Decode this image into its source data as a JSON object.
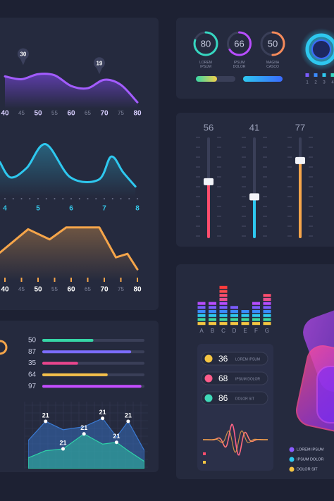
{
  "chart_data": [
    {
      "type": "line",
      "color": "#a35cff",
      "x": [
        40,
        45,
        50,
        55,
        60,
        65,
        70,
        75,
        80
      ],
      "values": [
        52,
        47,
        56,
        54,
        35,
        31,
        46,
        37,
        6
      ],
      "xlim": [
        40,
        80
      ],
      "ylim": [
        0,
        100
      ],
      "xticks": [
        40,
        45,
        50,
        55,
        60,
        65,
        70,
        75,
        80
      ],
      "annotations": [
        {
          "text": "30",
          "x": 45.5,
          "y": 72
        },
        {
          "text": "19",
          "x": 68.5,
          "y": 56
        }
      ]
    },
    {
      "type": "line",
      "color": "#2ec8ef",
      "x": [
        3.85,
        4.17,
        4.66,
        5.23,
        5.98,
        6.83,
        7.21,
        7.57,
        7.94
      ],
      "values": [
        56,
        29,
        46,
        88,
        29,
        25,
        66,
        38,
        13
      ],
      "xlim": [
        4,
        8
      ],
      "ylim": [
        0,
        100
      ],
      "xticks": [
        4,
        5,
        6,
        7,
        8
      ]
    },
    {
      "type": "line",
      "color": "#f5a54a",
      "x": [
        38.5,
        47,
        53.5,
        58.5,
        68.5,
        73.5,
        77,
        80
      ],
      "values": [
        43,
        82,
        65,
        85,
        85,
        35,
        41,
        15
      ],
      "xlim": [
        40,
        80
      ],
      "ylim": [
        0,
        100
      ],
      "xticks": [
        40,
        45,
        50,
        55,
        60,
        65,
        70,
        75,
        80
      ]
    },
    {
      "type": "hbar",
      "values": [
        50,
        87,
        35,
        64,
        97
      ],
      "colors": [
        "#36d6a6",
        "#7b6cff",
        "#e8458c",
        "#f5c04a",
        "#c44dff"
      ],
      "xlim": [
        0,
        100
      ]
    },
    {
      "type": "area",
      "x": [
        0,
        1.5,
        3,
        4.8,
        6.4,
        7.6,
        8.6,
        10
      ],
      "xlim": [
        0,
        10
      ],
      "ylim": [
        0,
        100
      ],
      "series": [
        {
          "color": "#3a7bd5",
          "values": [
            41,
            73,
            59,
            64,
            78,
            47,
            73,
            24
          ]
        },
        {
          "color": "#2fd3a8",
          "values": [
            12,
            24,
            27,
            52,
            35,
            38,
            24,
            6
          ]
        }
      ],
      "annotations": [
        {
          "text": "21",
          "x": 1.5,
          "y": 73
        },
        {
          "text": "21",
          "x": 6.4,
          "y": 78
        },
        {
          "text": "21",
          "x": 8.6,
          "y": 73
        },
        {
          "text": "21",
          "x": 4.8,
          "y": 52
        },
        {
          "text": "21",
          "x": 3,
          "y": 27
        },
        {
          "text": "21",
          "x": 7.6,
          "y": 38
        }
      ]
    },
    {
      "type": "equalizer",
      "categories": [
        "A",
        "B",
        "C",
        "D",
        "E",
        "F",
        "G"
      ],
      "values": [
        6,
        6,
        10,
        5,
        4,
        6,
        8
      ],
      "ylim": [
        0,
        10
      ],
      "segment_colors": [
        "#f5c542",
        "#3fd9a0",
        "#2ec8ef",
        "#3a8bff",
        "#7b5cff",
        "#b84dff",
        "#e8508c",
        "#ff4d6d",
        "#ff4d4d",
        "#ff3b3b"
      ]
    },
    {
      "type": "slider",
      "ylim": [
        0,
        100
      ],
      "values": [
        56,
        41,
        77
      ],
      "colors": [
        "#ff4d6d",
        "#2ec8ef",
        "#f5a54a"
      ]
    }
  ],
  "rings": [
    {
      "value": 80,
      "label": "LOREM IPSUM",
      "color": "#36d6c0"
    },
    {
      "value": 66,
      "label": "IPSUM DOLOR",
      "color": "#b84dff"
    },
    {
      "value": 50,
      "label": "MAGNA CASCO",
      "color": "#f58a5a"
    }
  ],
  "ring_legend": {
    "labels": [
      "1",
      "2",
      "3",
      "4"
    ],
    "colors": [
      "#7b5cff",
      "#3a8bff",
      "#2ec8ef",
      "#36d6c0"
    ]
  },
  "pills": [
    {
      "value": 36,
      "label": "LOREM IPSUM",
      "color": "#f5c542"
    },
    {
      "value": 68,
      "label": "IPSUM DOLOR",
      "color": "#ff5c8a"
    },
    {
      "value": 86,
      "label": "DOLOR SIT",
      "color": "#3fd9b8"
    }
  ],
  "legend": {
    "labels": [
      "LOREM IPSUM",
      "IPSUM DOLOR",
      "DOLOR SIT"
    ],
    "colors": [
      "#8a5cff",
      "#2ec8ef",
      "#f5c542"
    ]
  }
}
